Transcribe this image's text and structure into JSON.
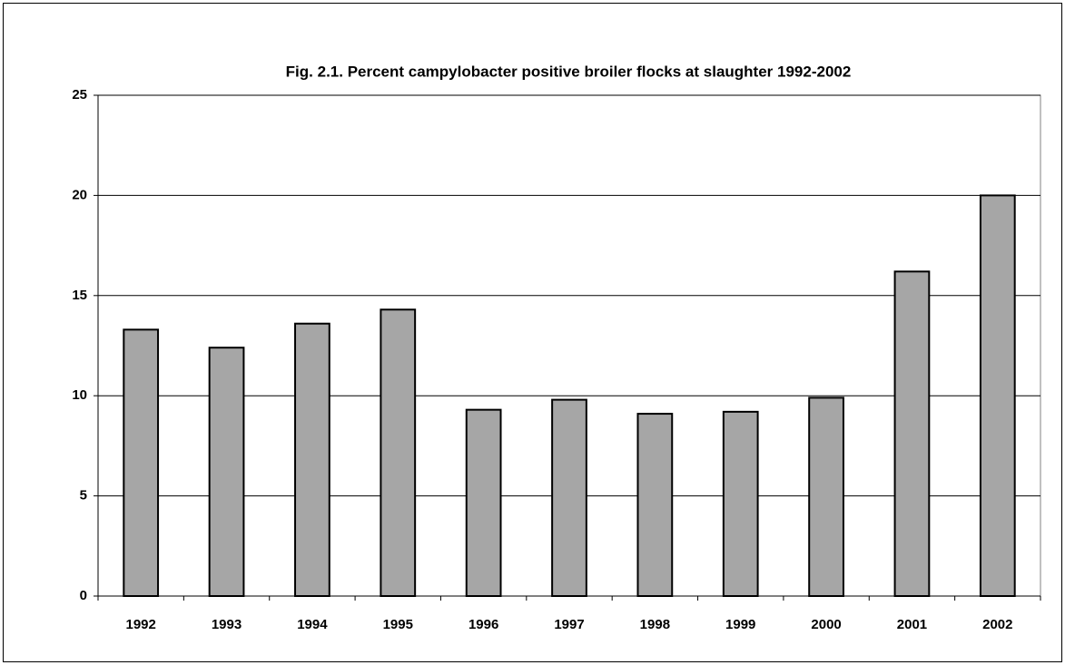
{
  "chart_data": {
    "type": "bar",
    "title": "Fig. 2.1.  Percent campylobacter positive broiler flocks at slaughter 1992-2002",
    "categories": [
      "1992",
      "1993",
      "1994",
      "1995",
      "1996",
      "1997",
      "1998",
      "1999",
      "2000",
      "2001",
      "2002"
    ],
    "values": [
      13.3,
      12.4,
      13.6,
      14.3,
      9.3,
      9.8,
      9.1,
      9.2,
      9.9,
      16.2,
      20.0
    ],
    "color": "#a6a6a6",
    "ylim": [
      0,
      25
    ],
    "yticks": [
      0,
      5,
      10,
      15,
      20,
      25
    ],
    "grid": true
  }
}
